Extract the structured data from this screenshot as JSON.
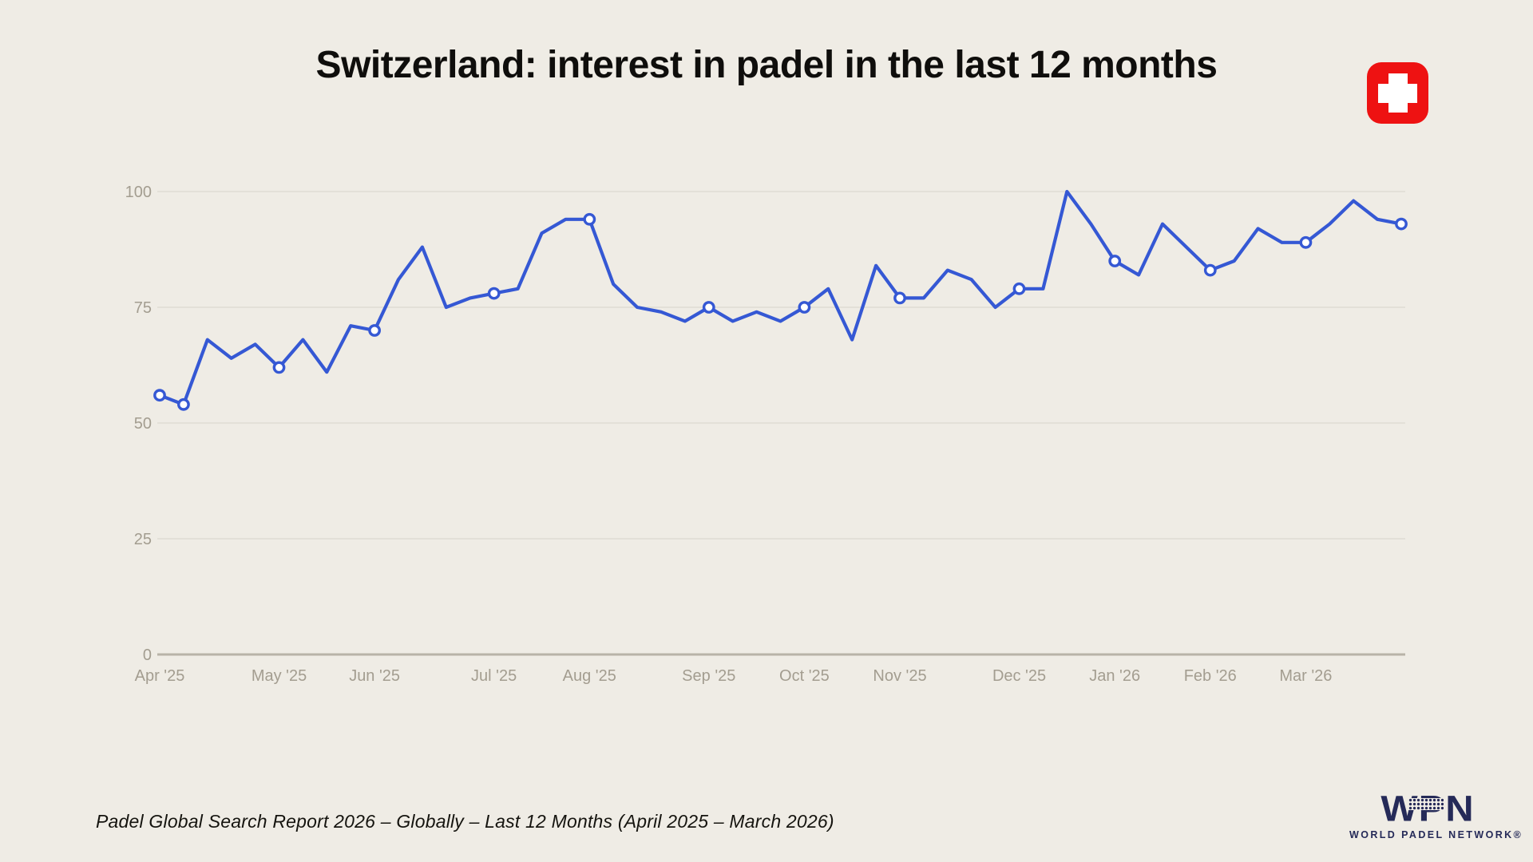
{
  "header": {
    "title": "Switzerland: interest in padel in the last 12 months",
    "flag_icon": "switzerland-flag"
  },
  "footer": {
    "source": "Padel Global Search Report 2026 – Globally – Last 12 Months (April 2025 – March 2026)",
    "logo": {
      "acronym": "WPN",
      "subtitle": "WORLD PADEL NETWORK®"
    }
  },
  "colors": {
    "background": "#EFECE5",
    "line": "#3558D4",
    "marker_fill": "#FFFFFF",
    "grid": "#E3E0D8",
    "axis_line": "#B8B3A8",
    "axis_text": "#A39D90",
    "title_text": "#0F0E0C",
    "flag_red": "#EE1212",
    "logo_navy": "#252A58"
  },
  "chart_data": {
    "type": "line",
    "title": "Switzerland: interest in padel in the last 12 months",
    "xlabel": "",
    "ylabel": "",
    "ylim": [
      0,
      100
    ],
    "yticks": [
      0,
      25,
      50,
      75,
      100
    ],
    "grid": true,
    "legend": false,
    "values": [
      56,
      54,
      68,
      64,
      67,
      62,
      68,
      61,
      71,
      70,
      81,
      88,
      75,
      77,
      78,
      79,
      91,
      94,
      94,
      80,
      75,
      74,
      72,
      75,
      72,
      74,
      72,
      75,
      79,
      68,
      84,
      77,
      77,
      83,
      81,
      75,
      79,
      79,
      100,
      93,
      85,
      82,
      93,
      88,
      83,
      85,
      92,
      89,
      89,
      93,
      98,
      94,
      93
    ],
    "marker_point_indices": [
      0,
      1,
      5,
      9,
      14,
      18,
      23,
      27,
      31,
      36,
      40,
      44,
      48,
      52
    ],
    "x_tick_labels": [
      "Apr '25",
      "May '25",
      "Jun '25",
      "Jul '25",
      "Aug '25",
      "Sep '25",
      "Oct '25",
      "Nov '25",
      "Dec '25",
      "Jan '26",
      "Feb '26",
      "Mar '26"
    ],
    "x_tick_point_indices": [
      0,
      5,
      9,
      14,
      18,
      23,
      27,
      31,
      36,
      40,
      44,
      48
    ]
  }
}
